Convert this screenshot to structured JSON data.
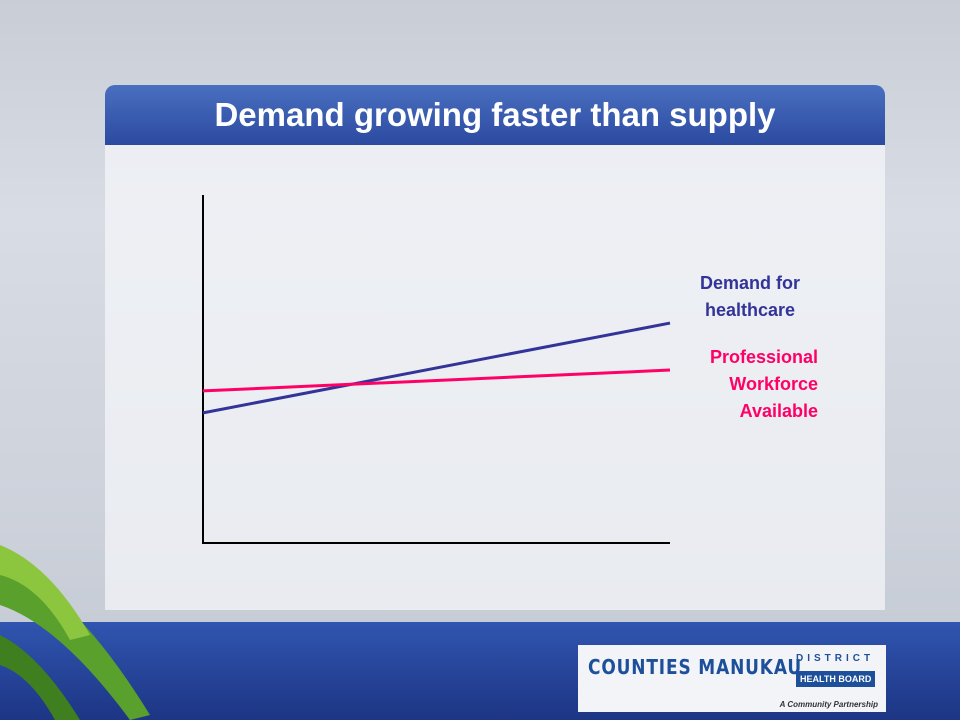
{
  "chart_data": {
    "type": "line",
    "title": "Demand growing faster than supply",
    "x": [
      0,
      1
    ],
    "xlim": [
      0,
      1
    ],
    "ylim": [
      0,
      100
    ],
    "series": [
      {
        "name": "Demand for healthcare",
        "color": "#333399",
        "values": [
          37.4,
          63.2
        ]
      },
      {
        "name": "Professional Workforce Available",
        "color": "#ff0066",
        "values": [
          43.7,
          49.7
        ]
      }
    ]
  },
  "logo": {
    "name": "COUNTIES MANUKAU",
    "district": "DISTRICT",
    "board": "HEALTH BOARD",
    "tagline": "A Community Partnership"
  }
}
